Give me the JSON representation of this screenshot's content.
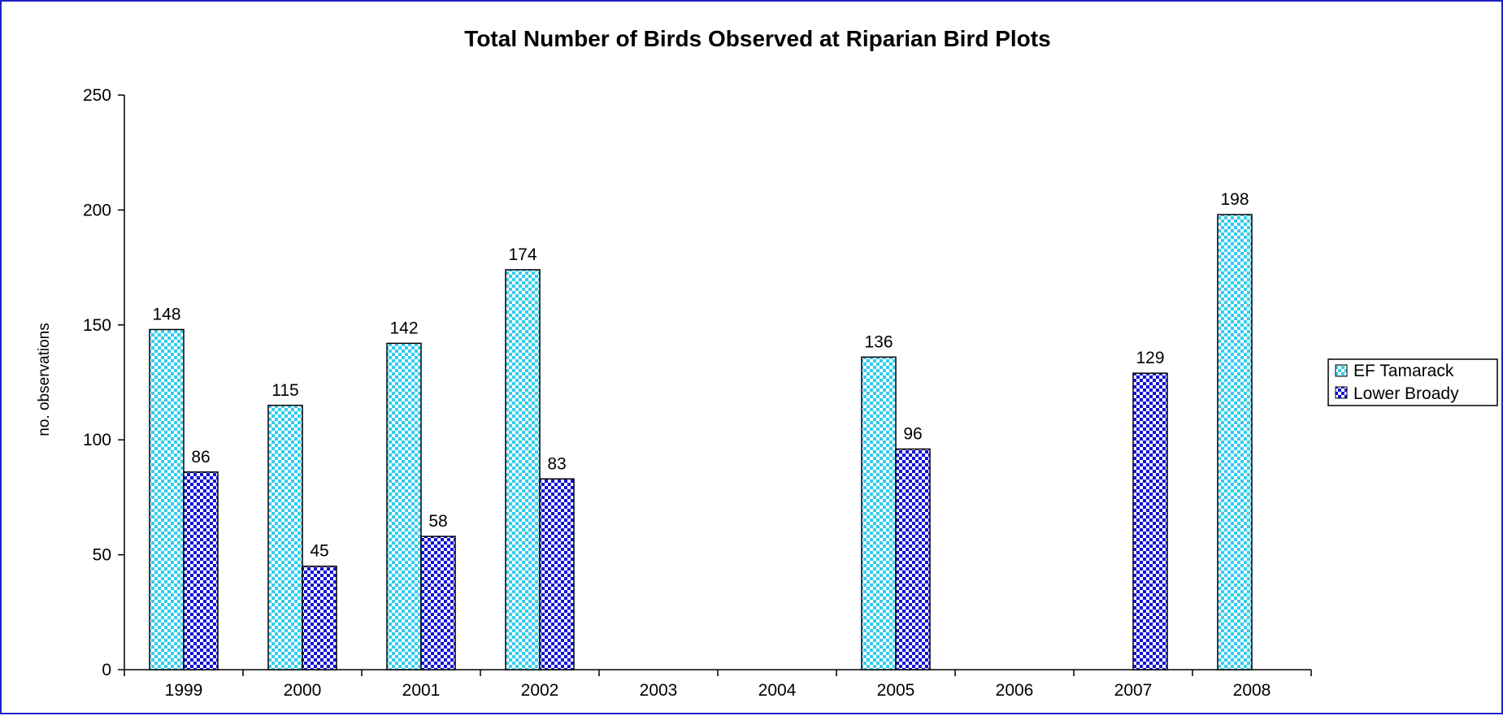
{
  "chart_data": {
    "type": "bar",
    "title": "Total Number of Birds Observed at Riparian Bird Plots",
    "xlabel": "",
    "ylabel": "no. observations",
    "ylim": [
      0,
      250
    ],
    "yticks": [
      "0",
      "50",
      "100",
      "150",
      "200",
      "250"
    ],
    "grid": false,
    "legend_position": "right",
    "categories": [
      "1999",
      "2000",
      "2001",
      "2002",
      "2003",
      "2004",
      "2005",
      "2006",
      "2007",
      "2008"
    ],
    "series": [
      {
        "name": "EF Tamarack",
        "color": "#33ccee",
        "values": [
          148,
          115,
          142,
          174,
          null,
          null,
          136,
          null,
          null,
          198
        ]
      },
      {
        "name": "Lower Broady",
        "color": "#1010d8",
        "values": [
          86,
          45,
          58,
          83,
          null,
          null,
          96,
          null,
          129,
          null
        ]
      }
    ]
  }
}
